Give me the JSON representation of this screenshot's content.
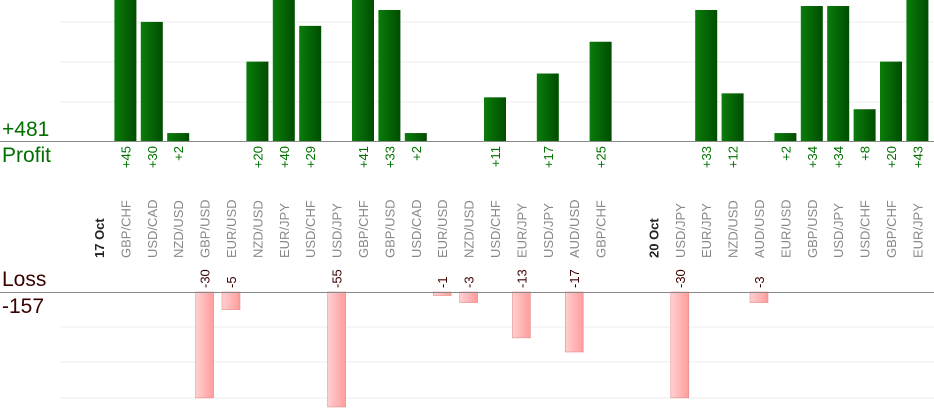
{
  "chart_data": {
    "type": "bar",
    "title": "",
    "profit_total": "+481",
    "profit_label": "Profit",
    "loss_label": "Loss",
    "loss_total": "-157",
    "colors": {
      "profit": "#006400",
      "profit_text": "#007000",
      "loss": "#ffb3b3",
      "loss_border": "#e08080",
      "loss_text": "#3a0000",
      "axis": "#888888",
      "grid": "#eeeeee"
    },
    "groups": [
      {
        "date": "17 Oct",
        "trades": [
          {
            "pair": "GBP/CHF",
            "value": 45
          },
          {
            "pair": "USD/CAD",
            "value": 30
          },
          {
            "pair": "NZD/USD",
            "value": 2
          },
          {
            "pair": "GBP/USD",
            "value": -30
          },
          {
            "pair": "EUR/USD",
            "value": -5
          },
          {
            "pair": "NZD/USD",
            "value": 20
          },
          {
            "pair": "EUR/JPY",
            "value": 40
          },
          {
            "pair": "USD/CHF",
            "value": 29
          },
          {
            "pair": "USD/JPY",
            "value": -55
          },
          {
            "pair": "GBP/CHF",
            "value": 41
          },
          {
            "pair": "GBP/USD",
            "value": 33
          },
          {
            "pair": "USD/CAD",
            "value": 2
          },
          {
            "pair": "EUR/USD",
            "value": -1
          },
          {
            "pair": "NZD/USD",
            "value": -3
          },
          {
            "pair": "USD/CHF",
            "value": 11
          },
          {
            "pair": "EUR/JPY",
            "value": -13
          },
          {
            "pair": "USD/JPY",
            "value": 17
          },
          {
            "pair": "AUD/USD",
            "value": -17
          },
          {
            "pair": "GBP/CHF",
            "value": 25
          }
        ]
      },
      {
        "date": "20 Oct",
        "trades": [
          {
            "pair": "USD/JPY",
            "value": -30
          },
          {
            "pair": "EUR/JPY",
            "value": 33
          },
          {
            "pair": "NZD/USD",
            "value": 12
          },
          {
            "pair": "AUD/USD",
            "value": -3
          },
          {
            "pair": "EUR/USD",
            "value": 2
          },
          {
            "pair": "GBP/USD",
            "value": 34
          },
          {
            "pair": "USD/JPY",
            "value": 34
          },
          {
            "pair": "USD/CHF",
            "value": 8
          },
          {
            "pair": "GBP/CHF",
            "value": 20
          },
          {
            "pair": "EUR/JPY",
            "value": 43
          }
        ]
      }
    ]
  }
}
